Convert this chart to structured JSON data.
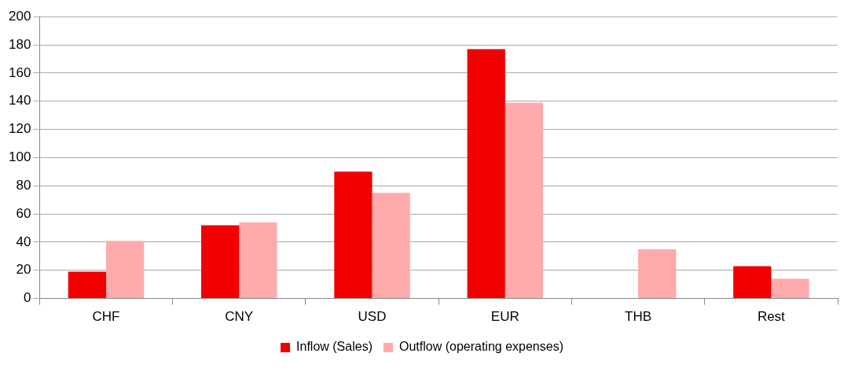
{
  "chart_data": {
    "type": "bar",
    "categories": [
      "CHF",
      "CNY",
      "USD",
      "EUR",
      "THB",
      "Rest"
    ],
    "series": [
      {
        "name": "Inflow (Sales)",
        "color": "#f20000",
        "values": [
          19,
          52,
          90,
          177,
          0,
          23
        ]
      },
      {
        "name": "Outflow (operating expenses)",
        "color": "#ffabab",
        "values": [
          41,
          54,
          75,
          139,
          35,
          14
        ]
      }
    ],
    "ylim": [
      0,
      200
    ],
    "yticks": [
      0,
      20,
      40,
      60,
      80,
      100,
      120,
      140,
      160,
      180,
      200
    ],
    "grid": "y",
    "legend": "bottom"
  }
}
